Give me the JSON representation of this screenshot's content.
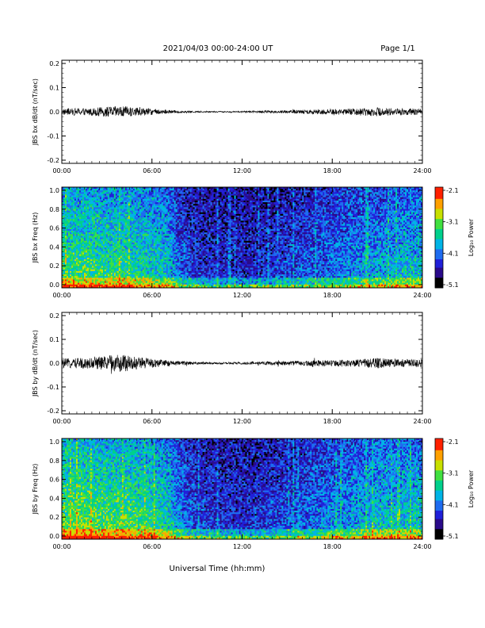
{
  "header": {
    "title": "2021/04/03  00:00-24:00 UT",
    "page": "Page 1/1"
  },
  "footer": {
    "xlabel": "Universal Time (hh:mm)"
  },
  "colors": {
    "trace": "#000000",
    "colormap": [
      "#000000",
      "#2a0a8a",
      "#2020d8",
      "#1e6cf0",
      "#00b4e6",
      "#00d08c",
      "#40e040",
      "#c8e000",
      "#ffa000",
      "#ff2000",
      "#ff0000"
    ]
  },
  "chart_data": [
    {
      "type": "line",
      "ylabel": "JBS bx dB/dt (nT/sec)",
      "x_ticks": [
        "00:00",
        "06:00",
        "12:00",
        "18:00",
        "24:00"
      ],
      "y_ticks": [
        "0.2",
        "0.1",
        "0.0",
        "-0.1",
        "-0.2"
      ],
      "xlim": [
        0,
        24
      ],
      "ylim": [
        -0.2,
        0.2
      ],
      "series": [
        {
          "x": [
            0,
            1,
            2,
            3,
            4,
            5,
            6,
            7,
            8,
            9,
            10,
            11,
            12,
            13,
            14,
            15,
            16,
            17,
            18,
            19,
            20,
            21,
            22,
            23,
            24
          ],
          "amplitude": [
            0.012,
            0.014,
            0.015,
            0.02,
            0.022,
            0.016,
            0.012,
            0.008,
            0.004,
            0.003,
            0.003,
            0.002,
            0.003,
            0.004,
            0.005,
            0.006,
            0.008,
            0.01,
            0.011,
            0.012,
            0.015,
            0.017,
            0.014,
            0.013,
            0.012
          ]
        }
      ]
    },
    {
      "type": "heatmap",
      "ylabel": "JBS bx Freq (Hz)",
      "x_ticks": [
        "00:00",
        "06:00",
        "12:00",
        "18:00",
        "24:00"
      ],
      "y_ticks": [
        "1.0",
        "0.8",
        "0.6",
        "0.4",
        "0.2",
        "0.0"
      ],
      "xlim": [
        0,
        24
      ],
      "ylim": [
        0,
        1.0
      ],
      "colorbar": {
        "label": "Log₁₀ Power",
        "ticks": [
          "-2.1",
          "-3.1",
          "-4.1",
          "-5.1"
        ],
        "range": [
          -5.1,
          -2.1
        ]
      },
      "activity_by_hour": [
        0.62,
        0.64,
        0.63,
        0.6,
        0.62,
        0.58,
        0.56,
        0.5,
        0.32,
        0.27,
        0.25,
        0.24,
        0.24,
        0.25,
        0.27,
        0.29,
        0.32,
        0.35,
        0.37,
        0.4,
        0.43,
        0.45,
        0.47,
        0.5,
        0.5
      ]
    },
    {
      "type": "line",
      "ylabel": "JBS by dB/dt (nT/sec)",
      "x_ticks": [
        "00:00",
        "06:00",
        "12:00",
        "18:00",
        "24:00"
      ],
      "y_ticks": [
        "0.2",
        "0.1",
        "0.0",
        "-0.1",
        "-0.2"
      ],
      "xlim": [
        0,
        24
      ],
      "ylim": [
        -0.2,
        0.2
      ],
      "series": [
        {
          "x": [
            0,
            1,
            2,
            3,
            4,
            5,
            6,
            7,
            8,
            9,
            10,
            11,
            12,
            13,
            14,
            15,
            16,
            17,
            18,
            19,
            20,
            21,
            22,
            23,
            24
          ],
          "amplitude": [
            0.018,
            0.02,
            0.022,
            0.03,
            0.035,
            0.025,
            0.018,
            0.012,
            0.008,
            0.005,
            0.004,
            0.004,
            0.005,
            0.006,
            0.008,
            0.009,
            0.01,
            0.012,
            0.013,
            0.014,
            0.016,
            0.02,
            0.017,
            0.015,
            0.014
          ]
        }
      ]
    },
    {
      "type": "heatmap",
      "ylabel": "JBS by Freq (Hz)",
      "x_ticks": [
        "00:00",
        "06:00",
        "12:00",
        "18:00",
        "24:00"
      ],
      "y_ticks": [
        "1.0",
        "0.8",
        "0.6",
        "0.4",
        "0.2",
        "0.0"
      ],
      "xlim": [
        0,
        24
      ],
      "ylim": [
        0,
        1.0
      ],
      "colorbar": {
        "label": "Log₁₀ Power",
        "ticks": [
          "-2.1",
          "-3.1",
          "-4.1",
          "-5.1"
        ],
        "range": [
          -5.1,
          -2.1
        ]
      },
      "activity_by_hour": [
        0.68,
        0.7,
        0.68,
        0.66,
        0.67,
        0.64,
        0.6,
        0.55,
        0.38,
        0.3,
        0.28,
        0.27,
        0.27,
        0.28,
        0.3,
        0.32,
        0.35,
        0.38,
        0.41,
        0.44,
        0.48,
        0.52,
        0.5,
        0.52,
        0.52
      ]
    }
  ]
}
